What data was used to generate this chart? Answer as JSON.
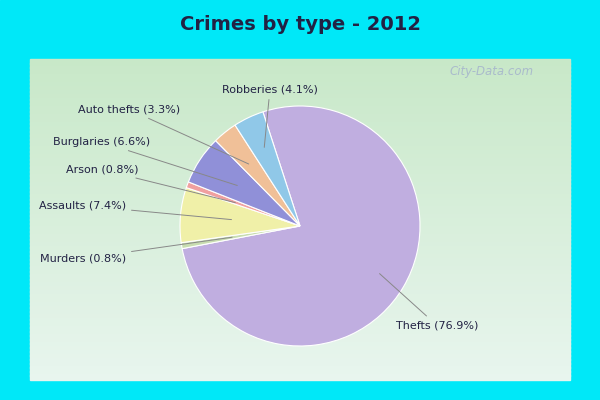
{
  "title": "Crimes by type - 2012",
  "slices": [
    {
      "label": "Thefts (76.9%)",
      "value": 76.9,
      "color": "#c0aee0"
    },
    {
      "label": "Murders (0.8%)",
      "value": 0.8,
      "color": "#c8ddb0"
    },
    {
      "label": "Assaults (7.4%)",
      "value": 7.4,
      "color": "#f0f0a8"
    },
    {
      "label": "Arson (0.8%)",
      "value": 0.8,
      "color": "#f0a0a0"
    },
    {
      "label": "Burglaries (6.6%)",
      "value": 6.6,
      "color": "#9090d8"
    },
    {
      "label": "Auto thefts (3.3%)",
      "value": 3.3,
      "color": "#f0c098"
    },
    {
      "label": "Robberies (4.1%)",
      "value": 4.1,
      "color": "#90c8e8"
    }
  ],
  "bg_cyan": "#00e8f8",
  "title_color": "#222244",
  "label_color": "#222244",
  "line_color": "#888888",
  "startangle": 108,
  "figsize": [
    6.0,
    4.0
  ],
  "dpi": 100,
  "watermark": "City-Data.com",
  "watermark_color": "#aabbcc"
}
